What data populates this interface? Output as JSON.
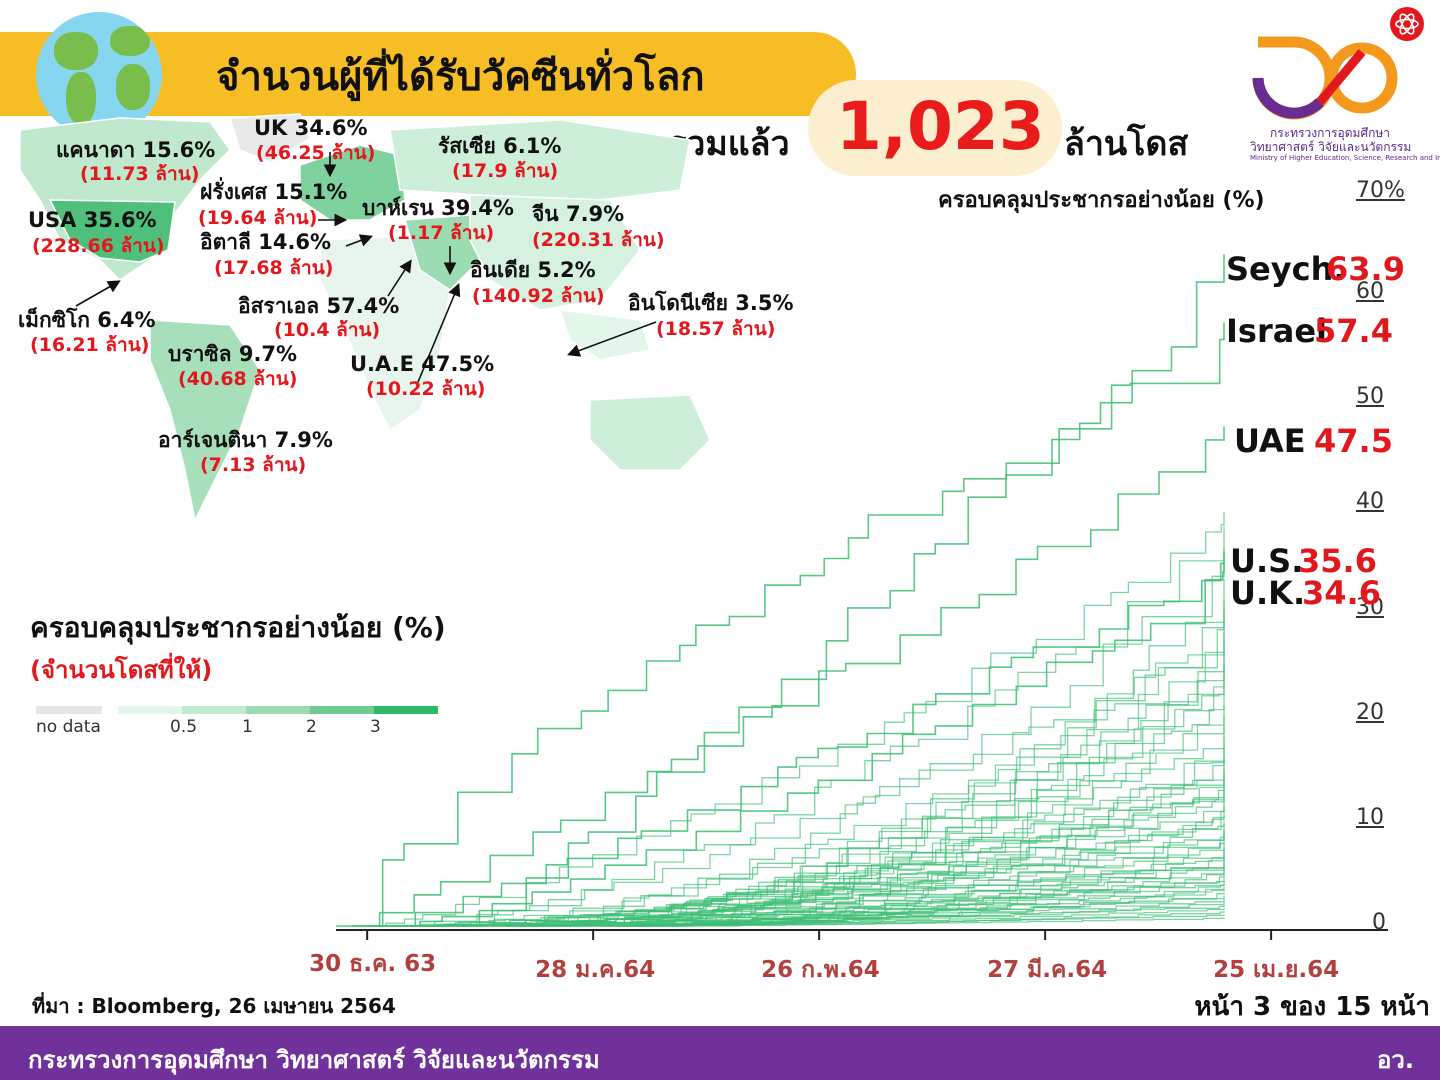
{
  "title": "จำนวนผู้ที่ได้รับวัคซีนทั่วโลก",
  "total": {
    "label": "รวมแล้ว",
    "value": "1,023",
    "unit": "ล้านโดส"
  },
  "logo": {
    "line1": "กระทรวงการอุดมศึกษา",
    "line2": "วิทยาศาสตร์ วิจัยและนวัตกรรม",
    "line3": "Ministry of Higher Education, Science, Research and Innovation",
    "colors": {
      "orange": "#f39a1e",
      "purple": "#6b2c91",
      "red": "#e3181e"
    }
  },
  "countries": [
    {
      "name": "แคนาดา 15.6%",
      "doses": "(11.73 ล้าน)"
    },
    {
      "name": "UK 34.6%",
      "doses": "(46.25 ล้าน)"
    },
    {
      "name": "รัสเซีย 6.1%",
      "doses": "(17.9 ล้าน)"
    },
    {
      "name": "ฝรั่งเศส 15.1%",
      "doses": "(19.64 ล้าน)"
    },
    {
      "name": "USA 35.6%",
      "doses": "(228.66 ล้าน)"
    },
    {
      "name": "อิตาลี 14.6%",
      "doses": "(17.68 ล้าน)"
    },
    {
      "name": "บาห์เรน 39.4%",
      "doses": "(1.17 ล้าน)"
    },
    {
      "name": "จีน 7.9%",
      "doses": "(220.31 ล้าน)"
    },
    {
      "name": "อินเดีย 5.2%",
      "doses": "(140.92 ล้าน)"
    },
    {
      "name": "เม็กซิโก 6.4%",
      "doses": "(16.21 ล้าน)"
    },
    {
      "name": "อิสราเอล 57.4%",
      "doses": "(10.4 ล้าน)"
    },
    {
      "name": "อินโดนีเซีย 3.5%",
      "doses": "(18.57 ล้าน)"
    },
    {
      "name": "บราซิล 9.7%",
      "doses": "(40.68 ล้าน)"
    },
    {
      "name": "U.A.E 47.5%",
      "doses": "(10.22 ล้าน)"
    },
    {
      "name": "อาร์เจนตินา 7.9%",
      "doses": "(7.13 ล้าน)"
    }
  ],
  "legend": {
    "title": "ครอบคลุมประชากรอย่างน้อย (%)",
    "subtitle": "(จำนวนโดสที่ให้)",
    "no_data": "no data",
    "ticks": [
      "0.5",
      "1",
      "2",
      "3"
    ],
    "colors": [
      "#e6e6e6",
      "#e3f6ea",
      "#c1ead0",
      "#9bdcb3",
      "#6fcb92",
      "#2fb86a"
    ]
  },
  "chart_data": {
    "type": "line",
    "title": "ครอบคลุมประชากรอย่างน้อย (%)",
    "y_unit_label": "70%",
    "ylim": [
      0,
      70
    ],
    "yticks": [
      0,
      10,
      20,
      30,
      40,
      50,
      60
    ],
    "x_range": [
      "2020-12-26",
      "2021-05-10"
    ],
    "x_ticks": [
      {
        "date": "2020-12-30",
        "label": "30 ธ.ค. 63"
      },
      {
        "date": "2021-01-28",
        "label": "28 ม.ค.64"
      },
      {
        "date": "2021-02-26",
        "label": "26 ก.พ.64"
      },
      {
        "date": "2021-03-27",
        "label": "27 มี.ค.64"
      },
      {
        "date": "2021-04-25",
        "label": "25 เม.ย.64"
      }
    ],
    "line_color": "#3cbf73",
    "labeled_series": [
      {
        "name": "Seych.",
        "value": "63.9",
        "start": "2021-01-10",
        "end_value": 63.9
      },
      {
        "name": "Israel",
        "value": "57.4",
        "start": "2020-12-26",
        "end_value": 57.4
      },
      {
        "name": "UAE",
        "value": "47.5",
        "start": "2020-12-28",
        "end_value": 47.5
      },
      {
        "name": "U.S.",
        "value": "35.6",
        "start": "2020-12-30",
        "end_value": 35.6
      },
      {
        "name": "U.K.",
        "value": "34.6",
        "start": "2021-01-02",
        "end_value": 34.6
      }
    ],
    "other_series_end_values": [
      39.4,
      38,
      36,
      33,
      31,
      30,
      29,
      28,
      27,
      26,
      25,
      24,
      23,
      22,
      21,
      20,
      19,
      18,
      17,
      16,
      15.6,
      15.1,
      14.6,
      14,
      13.5,
      13,
      12.5,
      12,
      11.5,
      11,
      10.5,
      10,
      9.7,
      9.2,
      8.8,
      8.4,
      7.9,
      7.5,
      7.1,
      6.8,
      6.4,
      6.1,
      5.8,
      5.5,
      5.2,
      4.9,
      4.6,
      4.3,
      4.0,
      3.7,
      3.5,
      3.2,
      2.9,
      2.6,
      2.3,
      2.0,
      1.7,
      1.4,
      1.1,
      0.8
    ]
  },
  "end_labels": [
    {
      "name": "Seych.",
      "value": "63.9"
    },
    {
      "name": "Israel",
      "value": "57.4"
    },
    {
      "name": "UAE",
      "value": "47.5"
    },
    {
      "name": "U.S.",
      "value": "35.6"
    },
    {
      "name": "U.K.",
      "value": "34.6"
    }
  ],
  "source": "ที่มา : Bloomberg, 26 เมษายน 2564",
  "page": "หน้า 3 ของ 15 หน้า",
  "footer": {
    "ministry": "กระทรวงการอุดมศึกษา วิทยาศาสตร์ วิจัยและนวัตกรรม",
    "short": "อว."
  }
}
